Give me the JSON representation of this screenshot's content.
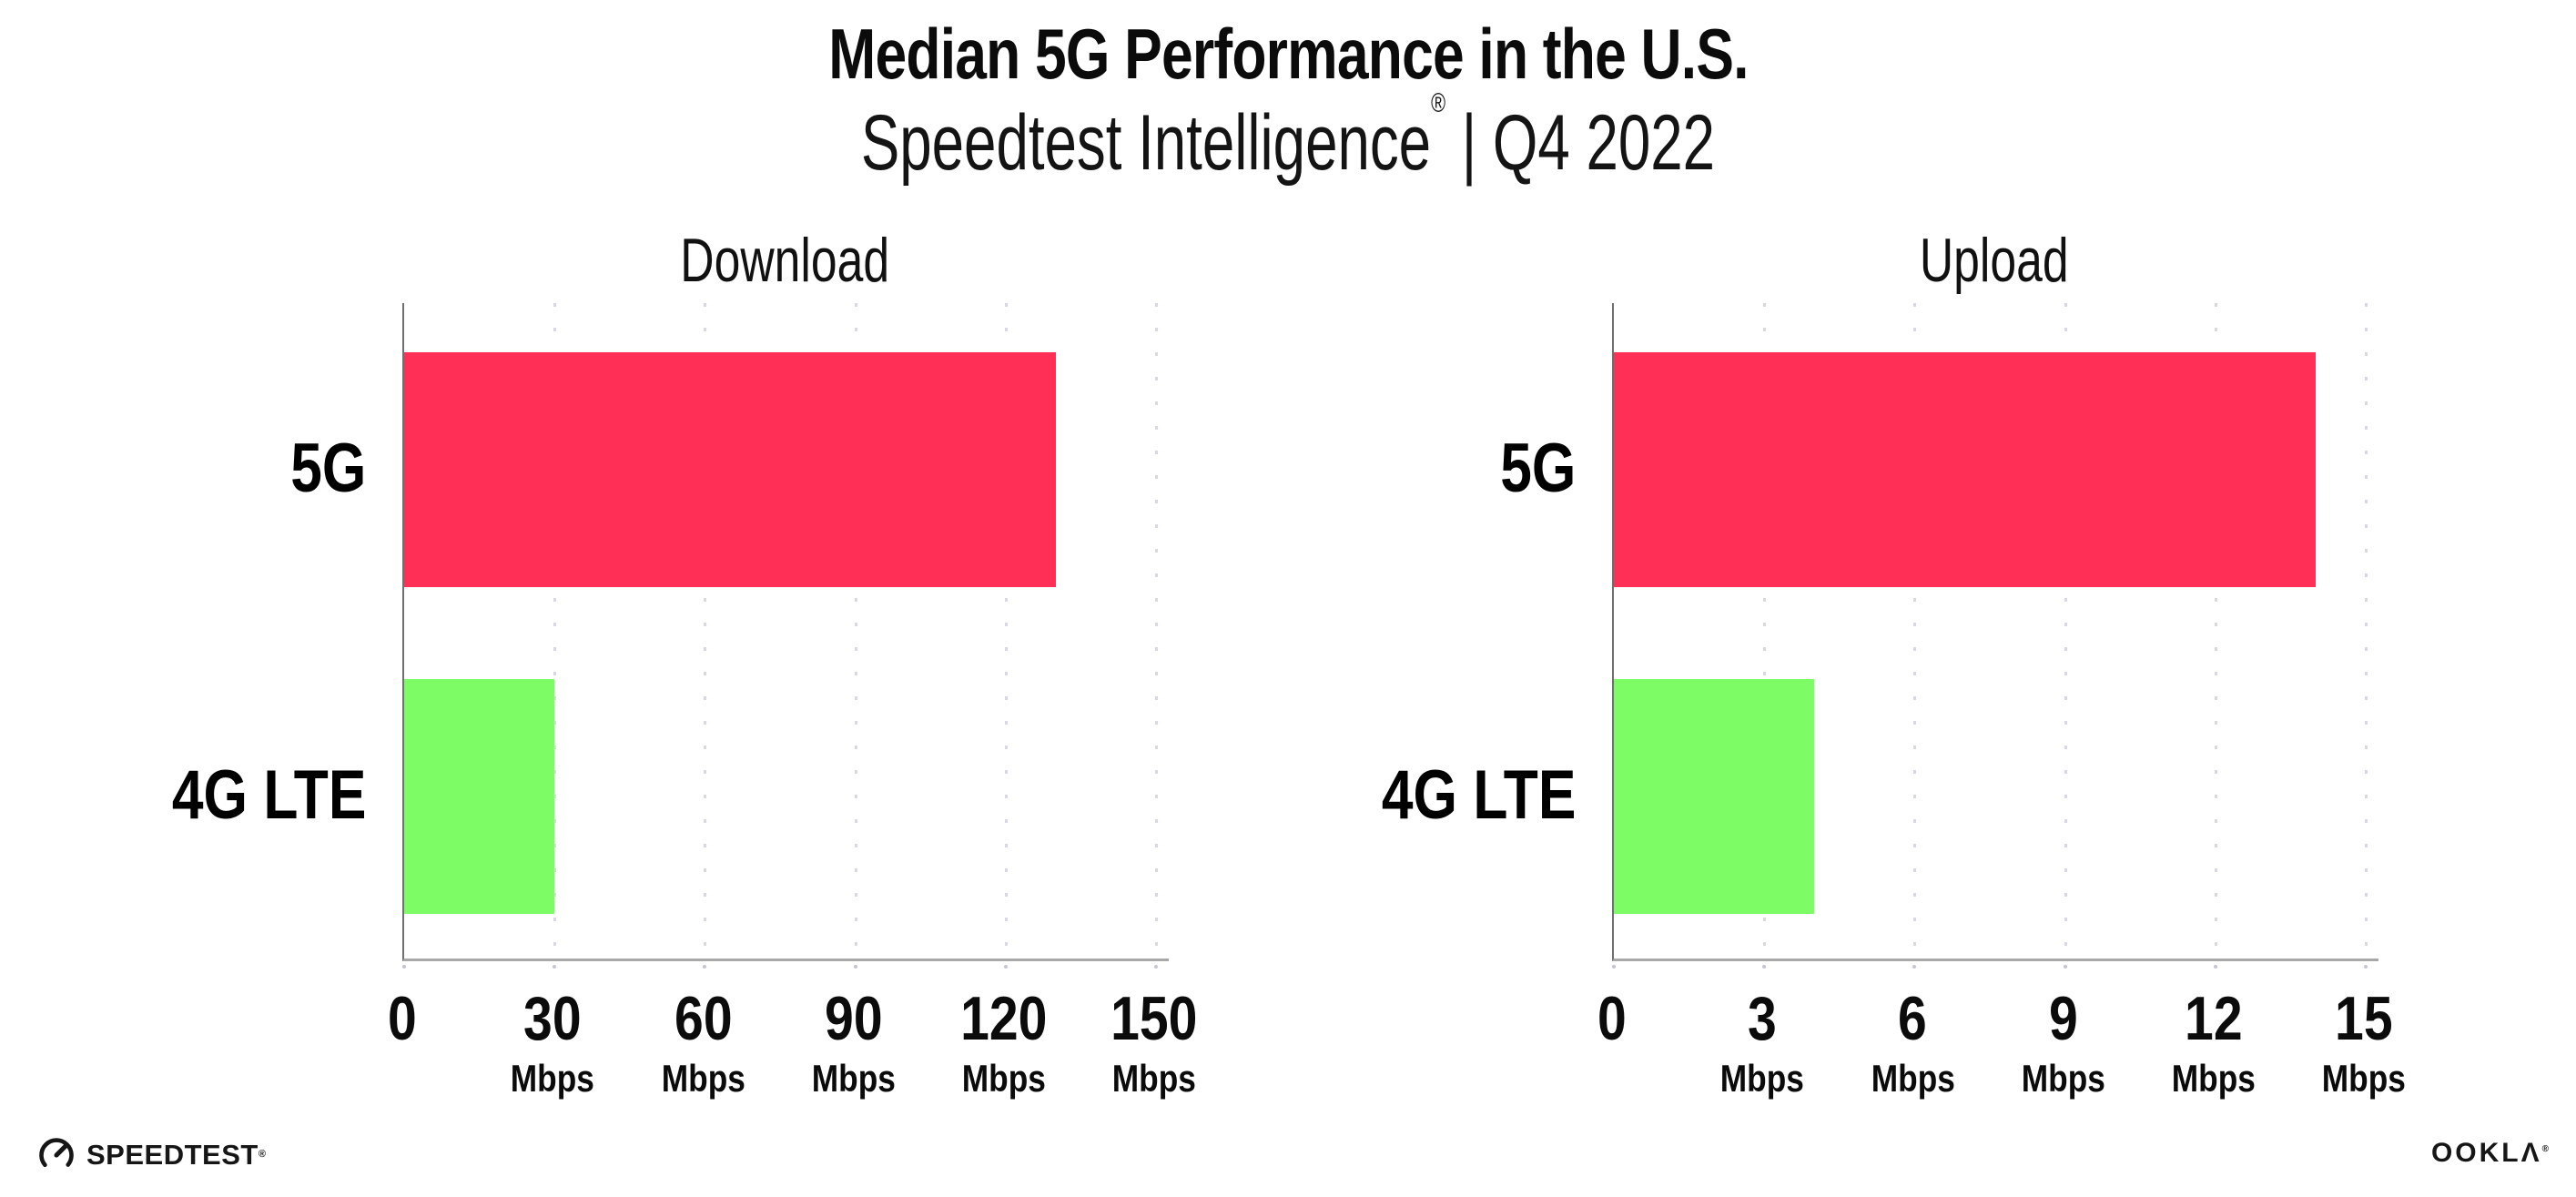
{
  "header": {
    "title": "Median 5G Performance in the U.S.",
    "subtitle_brand": "Speedtest Intelligence",
    "subtitle_registered": "®",
    "subtitle_rest": " | Q4 2022"
  },
  "chart_data": [
    {
      "type": "bar",
      "orientation": "horizontal",
      "title": "Download",
      "categories": [
        "5G",
        "4G LTE"
      ],
      "values": [
        130,
        30
      ],
      "unit": "Mbps",
      "xlim": [
        0,
        150
      ],
      "ticks": [
        0,
        30,
        60,
        90,
        120,
        150
      ],
      "bar_colors": [
        "#ff2f56",
        "#7dfc66"
      ],
      "grid": "dotted-vertical",
      "legend": "none"
    },
    {
      "type": "bar",
      "orientation": "horizontal",
      "title": "Upload",
      "categories": [
        "5G",
        "4G LTE"
      ],
      "values": [
        14,
        4
      ],
      "unit": "Mbps",
      "xlim": [
        0,
        15
      ],
      "ticks": [
        0,
        3,
        6,
        9,
        12,
        15
      ],
      "bar_colors": [
        "#ff2f56",
        "#7dfc66"
      ],
      "grid": "dotted-vertical",
      "legend": "none"
    }
  ],
  "footer": {
    "speedtest_label": "SPEEDTEST",
    "speedtest_mark": "®",
    "ookla_label": "OOKLΛ",
    "ookla_mark": "®"
  },
  "colors": {
    "bar_5g": "#ff2f56",
    "bar_4g_lte": "#7dfc66",
    "axis_line": "#6f6f6f",
    "baseline": "#a8a8a8",
    "grid_dot": "#d8d8e2",
    "text": "#0b0b0b"
  }
}
